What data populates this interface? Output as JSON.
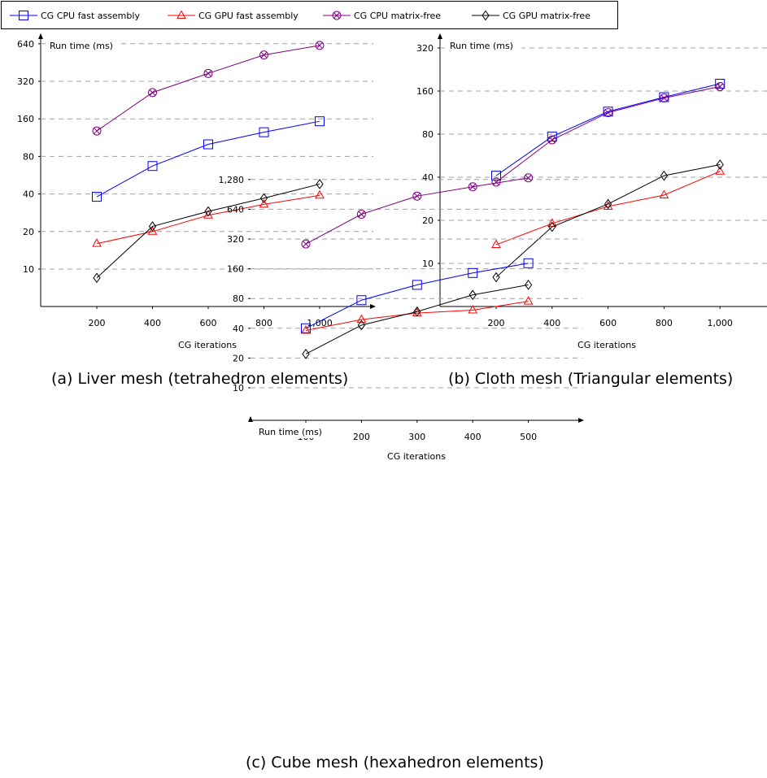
{
  "legend": [
    {
      "name": "CG CPU fast assembly",
      "color": "#0000ff",
      "marker": "square"
    },
    {
      "name": "CG GPU fast assembly",
      "color": "#ff0000",
      "marker": "triangle"
    },
    {
      "name": "CG CPU matrix-free",
      "color": "#800080",
      "marker": "otimes"
    },
    {
      "name": "CG GPU matrix-free",
      "color": "#000000",
      "marker": "diamond"
    }
  ],
  "chart_data": [
    {
      "type": "line",
      "caption": "(a) Liver mesh (tetrahedron elements)",
      "ylabel": "Run time (ms)",
      "xlabel": "CG iterations",
      "yscale": "log2",
      "grid": "horizontal dashed",
      "x": [
        200,
        400,
        600,
        800,
        1000
      ],
      "xticks": [
        "200",
        "400",
        "600",
        "800",
        "1,000"
      ],
      "yticks": [
        10,
        20,
        40,
        80,
        160,
        320,
        640
      ],
      "yticklabels": [
        "10",
        "20",
        "40",
        "80",
        "160",
        "320",
        "640"
      ],
      "series": [
        {
          "name": "CG CPU fast assembly",
          "values": [
            38,
            67,
            100,
            125,
            153
          ]
        },
        {
          "name": "CG GPU fast assembly",
          "values": [
            16,
            20,
            27,
            33,
            39
          ]
        },
        {
          "name": "CG CPU matrix-free",
          "values": [
            128,
            260,
            370,
            520,
            620
          ]
        },
        {
          "name": "CG GPU matrix-free",
          "values": [
            8.5,
            22,
            29,
            37,
            48
          ]
        }
      ]
    },
    {
      "type": "line",
      "caption": "(b) Cloth mesh (Triangular elements)",
      "ylabel": "Run time (ms)",
      "xlabel": "CG iterations",
      "yscale": "log2",
      "grid": "horizontal dashed",
      "x": [
        200,
        400,
        600,
        800,
        1000
      ],
      "xticks": [
        "200",
        "400",
        "600",
        "800",
        "1,000"
      ],
      "yticks": [
        10,
        20,
        40,
        80,
        160,
        320
      ],
      "yticklabels": [
        "10",
        "20",
        "40",
        "80",
        "160",
        "320"
      ],
      "series": [
        {
          "name": "CG CPU fast assembly",
          "values": [
            41,
            77,
            115,
            145,
            180
          ]
        },
        {
          "name": "CG GPU fast assembly",
          "values": [
            13.5,
            19,
            25,
            30,
            44
          ]
        },
        {
          "name": "CG CPU matrix-free",
          "values": [
            37,
            73,
            113,
            143,
            172
          ]
        },
        {
          "name": "CG GPU matrix-free",
          "values": [
            8,
            18,
            26,
            41,
            49
          ]
        }
      ]
    },
    {
      "type": "line",
      "caption": "(c) Cube mesh (hexahedron elements)",
      "ylabel": "Run time (ms)",
      "xlabel": "CG iterations",
      "yscale": "log2",
      "grid": "horizontal dashed",
      "x": [
        100,
        200,
        300,
        400,
        500
      ],
      "xticks": [
        "100",
        "200",
        "300",
        "400",
        "500"
      ],
      "yticks": [
        10,
        20,
        40,
        80,
        160,
        320,
        640,
        1280
      ],
      "yticklabels": [
        "10",
        "20",
        "40",
        "80",
        "160",
        "320",
        "640",
        "1,280"
      ],
      "series": [
        {
          "name": "CG CPU fast assembly",
          "values": [
            40,
            77,
            110,
            145,
            182
          ]
        },
        {
          "name": "CG GPU fast assembly",
          "values": [
            38,
            49,
            57,
            61,
            75
          ]
        },
        {
          "name": "CG CPU matrix-free",
          "values": [
            285,
            570,
            870,
            1080,
            1330
          ]
        },
        {
          "name": "CG GPU matrix-free",
          "values": [
            22,
            43,
            59,
            87,
            110
          ]
        }
      ]
    }
  ]
}
